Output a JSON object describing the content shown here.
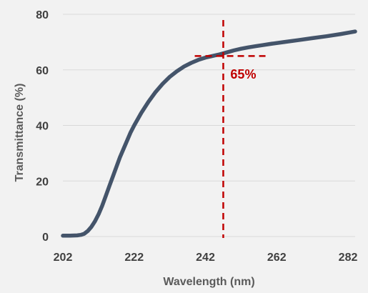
{
  "chart_data": {
    "type": "line",
    "xlabel": "Wavelength (nm)",
    "ylabel": "Transmittance (%)",
    "xlim": [
      202,
      284
    ],
    "ylim": [
      0,
      80
    ],
    "x_ticks": [
      "202",
      "222",
      "242",
      "262",
      "282"
    ],
    "y_ticks": [
      "0",
      "20",
      "40",
      "60",
      "80"
    ],
    "grid": "horizontal",
    "legend": "none",
    "colors": {
      "series": "#44546a",
      "annotation": "#c00000",
      "gridline": "#d9d9d9",
      "background": "#f2f2f2"
    },
    "series": [
      {
        "x": [
          202,
          204,
          206,
          207,
          208,
          209,
          210,
          211,
          212,
          213,
          214,
          215,
          216,
          217,
          218,
          219,
          220,
          221,
          222,
          224,
          226,
          228,
          230,
          232,
          234,
          236,
          238,
          240,
          242,
          244,
          246,
          248,
          250,
          252,
          254,
          256,
          258,
          260,
          264,
          268,
          272,
          276,
          280,
          284
        ],
        "y": [
          0.3,
          0.3,
          0.4,
          0.6,
          1.0,
          2.0,
          3.5,
          5.5,
          8.0,
          11.0,
          14.5,
          18.0,
          21.5,
          25.0,
          28.5,
          31.5,
          34.5,
          37.5,
          40.0,
          44.5,
          48.5,
          52.0,
          55.0,
          57.5,
          59.5,
          61.2,
          62.5,
          63.6,
          64.4,
          65.0,
          65.6,
          66.3,
          67.0,
          67.6,
          68.1,
          68.5,
          68.9,
          69.3,
          70.0,
          70.7,
          71.4,
          72.1,
          72.9,
          73.8
        ]
      }
    ],
    "annotations": [
      {
        "type": "vline",
        "x": 247
      },
      {
        "type": "hline",
        "y": 65,
        "x_from": 239,
        "x_to": 259
      },
      {
        "type": "label",
        "text": "65%",
        "x": 249,
        "y": 60
      }
    ]
  }
}
